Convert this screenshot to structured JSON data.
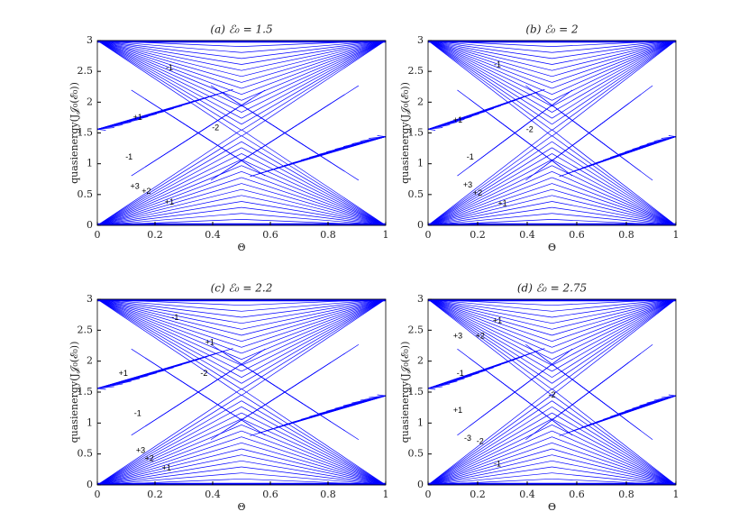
{
  "chart_data": [
    {
      "type": "butterfly",
      "title": "(a) ℰ₀ = 1.5",
      "x_label": "Θ",
      "y_label": "quasienergy(J𝒥₀(ℰ₀))",
      "xlim": [
        0,
        1
      ],
      "ylim": [
        0,
        3
      ],
      "xticks": [
        0,
        0.2,
        0.4,
        0.6,
        0.8,
        1
      ],
      "yticks": [
        0,
        0.5,
        1,
        1.5,
        2,
        2.5,
        3
      ],
      "color": "#0000ff",
      "annotations": [
        {
          "text": "-1",
          "x": 0.25,
          "y": 2.55
        },
        {
          "text": "+1",
          "x": 0.14,
          "y": 1.75
        },
        {
          "text": "-2",
          "x": 0.41,
          "y": 1.58
        },
        {
          "text": "-1",
          "x": 0.11,
          "y": 1.1
        },
        {
          "text": "+3",
          "x": 0.13,
          "y": 0.63
        },
        {
          "text": "+2",
          "x": 0.17,
          "y": 0.55
        },
        {
          "text": "+1",
          "x": 0.25,
          "y": 0.37
        }
      ]
    },
    {
      "type": "butterfly",
      "title": "(b) ℰ₀ = 2",
      "x_label": "Θ",
      "y_label": "quasienergy(J𝒥₀(ℰ₀))",
      "xlim": [
        0,
        1
      ],
      "ylim": [
        0,
        3
      ],
      "xticks": [
        0,
        0.2,
        0.4,
        0.6,
        0.8,
        1
      ],
      "yticks": [
        0,
        0.5,
        1,
        1.5,
        2,
        2.5,
        3
      ],
      "color": "#0000ff",
      "annotations": [
        {
          "text": "-1",
          "x": 0.28,
          "y": 2.6
        },
        {
          "text": "+1",
          "x": 0.12,
          "y": 1.7
        },
        {
          "text": "-2",
          "x": 0.41,
          "y": 1.55
        },
        {
          "text": "-1",
          "x": 0.17,
          "y": 1.1
        },
        {
          "text": "+3",
          "x": 0.16,
          "y": 0.65
        },
        {
          "text": "+2",
          "x": 0.2,
          "y": 0.52
        },
        {
          "text": "+1",
          "x": 0.3,
          "y": 0.35
        }
      ]
    },
    {
      "type": "butterfly",
      "title": "(c) ℰ₀ = 2.2",
      "x_label": "Θ",
      "y_label": "quasienergy(J𝒥₀(ℰ₀))",
      "xlim": [
        0,
        1
      ],
      "ylim": [
        0,
        3
      ],
      "xticks": [
        0,
        0.2,
        0.4,
        0.6,
        0.8,
        1
      ],
      "yticks": [
        0,
        0.5,
        1,
        1.5,
        2,
        2.5,
        3
      ],
      "color": "#0000ff",
      "annotations": [
        {
          "text": "-1",
          "x": 0.27,
          "y": 2.7
        },
        {
          "text": "+1",
          "x": 0.39,
          "y": 2.3
        },
        {
          "text": "+1",
          "x": 0.09,
          "y": 1.8
        },
        {
          "text": "-2",
          "x": 0.37,
          "y": 1.8
        },
        {
          "text": "-1",
          "x": 0.14,
          "y": 1.15
        },
        {
          "text": "+3",
          "x": 0.15,
          "y": 0.55
        },
        {
          "text": "+2",
          "x": 0.18,
          "y": 0.42
        },
        {
          "text": "+1",
          "x": 0.24,
          "y": 0.27
        }
      ]
    },
    {
      "type": "butterfly",
      "title": "(d) ℰ₀ = 2.75",
      "x_label": "Θ",
      "y_label": "quasienergy(J𝒥₀(ℰ₀))",
      "xlim": [
        0,
        1
      ],
      "ylim": [
        0,
        3
      ],
      "xticks": [
        0,
        0.2,
        0.4,
        0.6,
        0.8,
        1
      ],
      "yticks": [
        0,
        0.5,
        1,
        1.5,
        2,
        2.5,
        3
      ],
      "color": "#0000ff",
      "annotations": [
        {
          "text": "+1",
          "x": 0.28,
          "y": 2.65
        },
        {
          "text": "+3",
          "x": 0.12,
          "y": 2.4
        },
        {
          "text": "+2",
          "x": 0.21,
          "y": 2.4
        },
        {
          "text": "-1",
          "x": 0.13,
          "y": 1.8
        },
        {
          "text": "-2",
          "x": 0.5,
          "y": 1.45
        },
        {
          "text": "+1",
          "x": 0.12,
          "y": 1.2
        },
        {
          "text": "-3",
          "x": 0.16,
          "y": 0.75
        },
        {
          "text": "-2",
          "x": 0.21,
          "y": 0.7
        },
        {
          "text": "-1",
          "x": 0.28,
          "y": 0.33
        }
      ]
    }
  ]
}
